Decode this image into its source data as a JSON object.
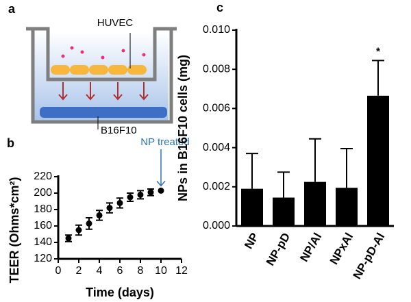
{
  "diagram": {
    "panel": "a",
    "labels": [
      "HUVEC",
      "B16F10"
    ]
  },
  "chart_data": [
    {
      "type": "scatter",
      "panel": "b",
      "xlabel": "Time (days)",
      "ylabel": "TEER (Ohms*cm²)",
      "x": [
        1,
        2,
        3,
        4,
        5,
        6,
        7,
        8,
        9,
        10
      ],
      "values": [
        145,
        155,
        163,
        173,
        182,
        188,
        195,
        198,
        201,
        203
      ],
      "errors": [
        4,
        6,
        7,
        6,
        6,
        6,
        5,
        5,
        4,
        null
      ],
      "color": "#000000",
      "annotation": "NP treated",
      "annotation_color": "#2e75b6",
      "xlim": [
        0,
        12
      ],
      "xticks": [
        0,
        2,
        4,
        6,
        8,
        10,
        12
      ],
      "ylim": [
        120,
        220
      ],
      "yticks": [
        120,
        140,
        160,
        180,
        200,
        220
      ]
    },
    {
      "type": "bar",
      "panel": "c",
      "ylabel": "NPs in B16F10 cells (mg)",
      "categories": [
        "NP",
        "NP-pD",
        "NP/Al",
        "NPxAl",
        "NP-pD-Al"
      ],
      "values": [
        0.0019,
        0.00145,
        0.00225,
        0.00195,
        0.00665
      ],
      "errors": [
        0.0018,
        0.0013,
        0.0022,
        0.002,
        0.0018
      ],
      "color": "#000000",
      "annotation": "*",
      "ylim": [
        0,
        0.01
      ],
      "yticks": [
        {
          "value": 0,
          "label": "0.000"
        },
        {
          "value": 0.002,
          "label": "0.002"
        },
        {
          "value": 0.004,
          "label": "0.004"
        },
        {
          "value": 0.006,
          "label": "0.006"
        },
        {
          "value": 0.008,
          "label": "0.008"
        },
        {
          "value": 0.01,
          "label": "0.010"
        }
      ]
    }
  ]
}
